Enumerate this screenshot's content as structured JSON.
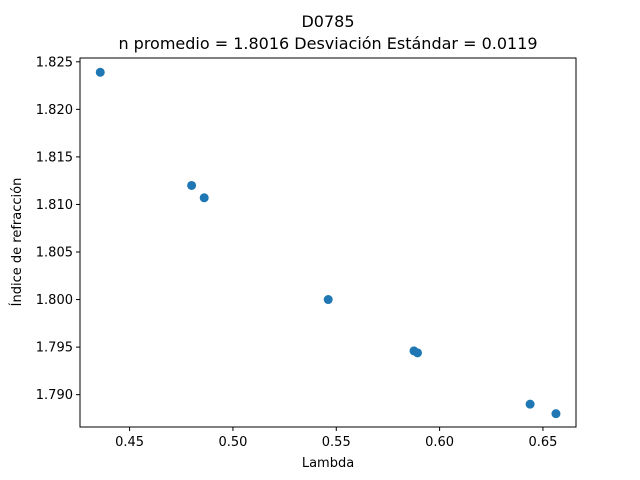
{
  "chart_data": {
    "type": "scatter",
    "title": "D0785",
    "subtitle": "n promedio = 1.8016  Desviación Estándar = 0.0119",
    "xlabel": "Lambda",
    "ylabel": "Índice de refracción",
    "xlim": [
      0.426,
      0.666
    ],
    "ylim": [
      1.7866,
      1.8254
    ],
    "xticks": [
      "0.45",
      "0.50",
      "0.55",
      "0.60",
      "0.65"
    ],
    "yticks": [
      "1.790",
      "1.795",
      "1.800",
      "1.805",
      "1.810",
      "1.815",
      "1.820",
      "1.825"
    ],
    "grid": false,
    "color": "#1f77b4",
    "x": [
      0.4358,
      0.48,
      0.4861,
      0.5461,
      0.5876,
      0.5893,
      0.6438,
      0.6563
    ],
    "y": [
      1.8239,
      1.812,
      1.8107,
      1.8,
      1.7946,
      1.7944,
      1.789,
      1.788
    ]
  }
}
